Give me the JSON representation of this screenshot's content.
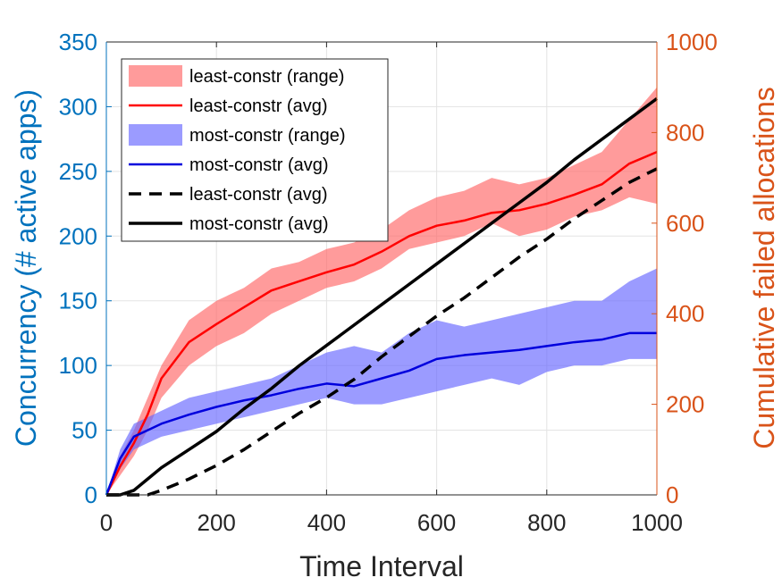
{
  "chart_data": {
    "type": "line",
    "title": "",
    "xlabel": "Time Interval",
    "ylabel_left": "Concurrency (# active apps)",
    "ylabel_right": "Cumulative failed allocations",
    "xlim": [
      0,
      1000
    ],
    "ylim_left": [
      0,
      350
    ],
    "ylim_right": [
      0,
      1000
    ],
    "xticks": [
      "0",
      "200",
      "400",
      "600",
      "800",
      "1000"
    ],
    "yticks_left": [
      "0",
      "50",
      "100",
      "150",
      "200",
      "250",
      "300",
      "350"
    ],
    "yticks_right": [
      "0",
      "200",
      "400",
      "600",
      "800",
      "1000"
    ],
    "grid": true,
    "legend_position": "top-left",
    "colors": {
      "left_axis": "#0072BD",
      "right_axis": "#D95319",
      "least_range": "#FF6666",
      "least_avg": "#FF0000",
      "most_range": "#6666FF",
      "most_avg": "#0000DD",
      "failed": "#000000"
    },
    "x": [
      0,
      25,
      50,
      75,
      100,
      150,
      200,
      250,
      300,
      350,
      400,
      450,
      500,
      550,
      600,
      650,
      700,
      750,
      800,
      850,
      900,
      950,
      1000
    ],
    "series": [
      {
        "name": "least-constr (range)",
        "axis": "left",
        "kind": "band",
        "color": "#FF6666",
        "low": [
          0,
          15,
          30,
          50,
          75,
          100,
          115,
          125,
          140,
          150,
          160,
          165,
          175,
          190,
          195,
          200,
          210,
          200,
          205,
          215,
          220,
          230,
          225
        ],
        "high": [
          0,
          30,
          50,
          75,
          100,
          135,
          150,
          160,
          175,
          180,
          190,
          195,
          205,
          220,
          230,
          235,
          245,
          240,
          245,
          255,
          265,
          290,
          315
        ]
      },
      {
        "name": "least-constr (avg)",
        "axis": "left",
        "kind": "line",
        "color": "#FF0000",
        "values": [
          0,
          22,
          40,
          62,
          90,
          118,
          132,
          145,
          158,
          165,
          172,
          178,
          188,
          200,
          208,
          212,
          218,
          220,
          225,
          232,
          240,
          256,
          265
        ]
      },
      {
        "name": "most-constr (range)",
        "axis": "left",
        "kind": "band",
        "color": "#6666FF",
        "low": [
          0,
          20,
          35,
          40,
          45,
          50,
          55,
          60,
          65,
          70,
          75,
          70,
          70,
          75,
          80,
          85,
          90,
          85,
          95,
          100,
          100,
          105,
          105
        ],
        "high": [
          0,
          35,
          55,
          60,
          65,
          75,
          80,
          85,
          90,
          100,
          110,
          115,
          110,
          125,
          135,
          130,
          135,
          140,
          145,
          150,
          150,
          165,
          175
        ]
      },
      {
        "name": "most-constr (avg)",
        "axis": "left",
        "kind": "line",
        "color": "#0000DD",
        "values": [
          0,
          28,
          45,
          50,
          55,
          62,
          68,
          73,
          77,
          82,
          86,
          84,
          90,
          96,
          105,
          108,
          110,
          112,
          115,
          118,
          120,
          125,
          125
        ]
      },
      {
        "name": "least-constr (avg)",
        "axis": "right",
        "kind": "line",
        "dashed": true,
        "color": "#000000",
        "values": [
          0,
          0,
          0,
          0,
          10,
          35,
          65,
          100,
          140,
          180,
          215,
          255,
          305,
          350,
          395,
          435,
          480,
          525,
          565,
          610,
          650,
          690,
          720
        ]
      },
      {
        "name": "most-constr (avg)",
        "axis": "right",
        "kind": "line",
        "dashed": false,
        "color": "#000000",
        "values": [
          0,
          0,
          10,
          35,
          60,
          100,
          140,
          190,
          235,
          285,
          330,
          375,
          420,
          465,
          510,
          555,
          600,
          645,
          690,
          740,
          785,
          830,
          875
        ]
      }
    ]
  }
}
